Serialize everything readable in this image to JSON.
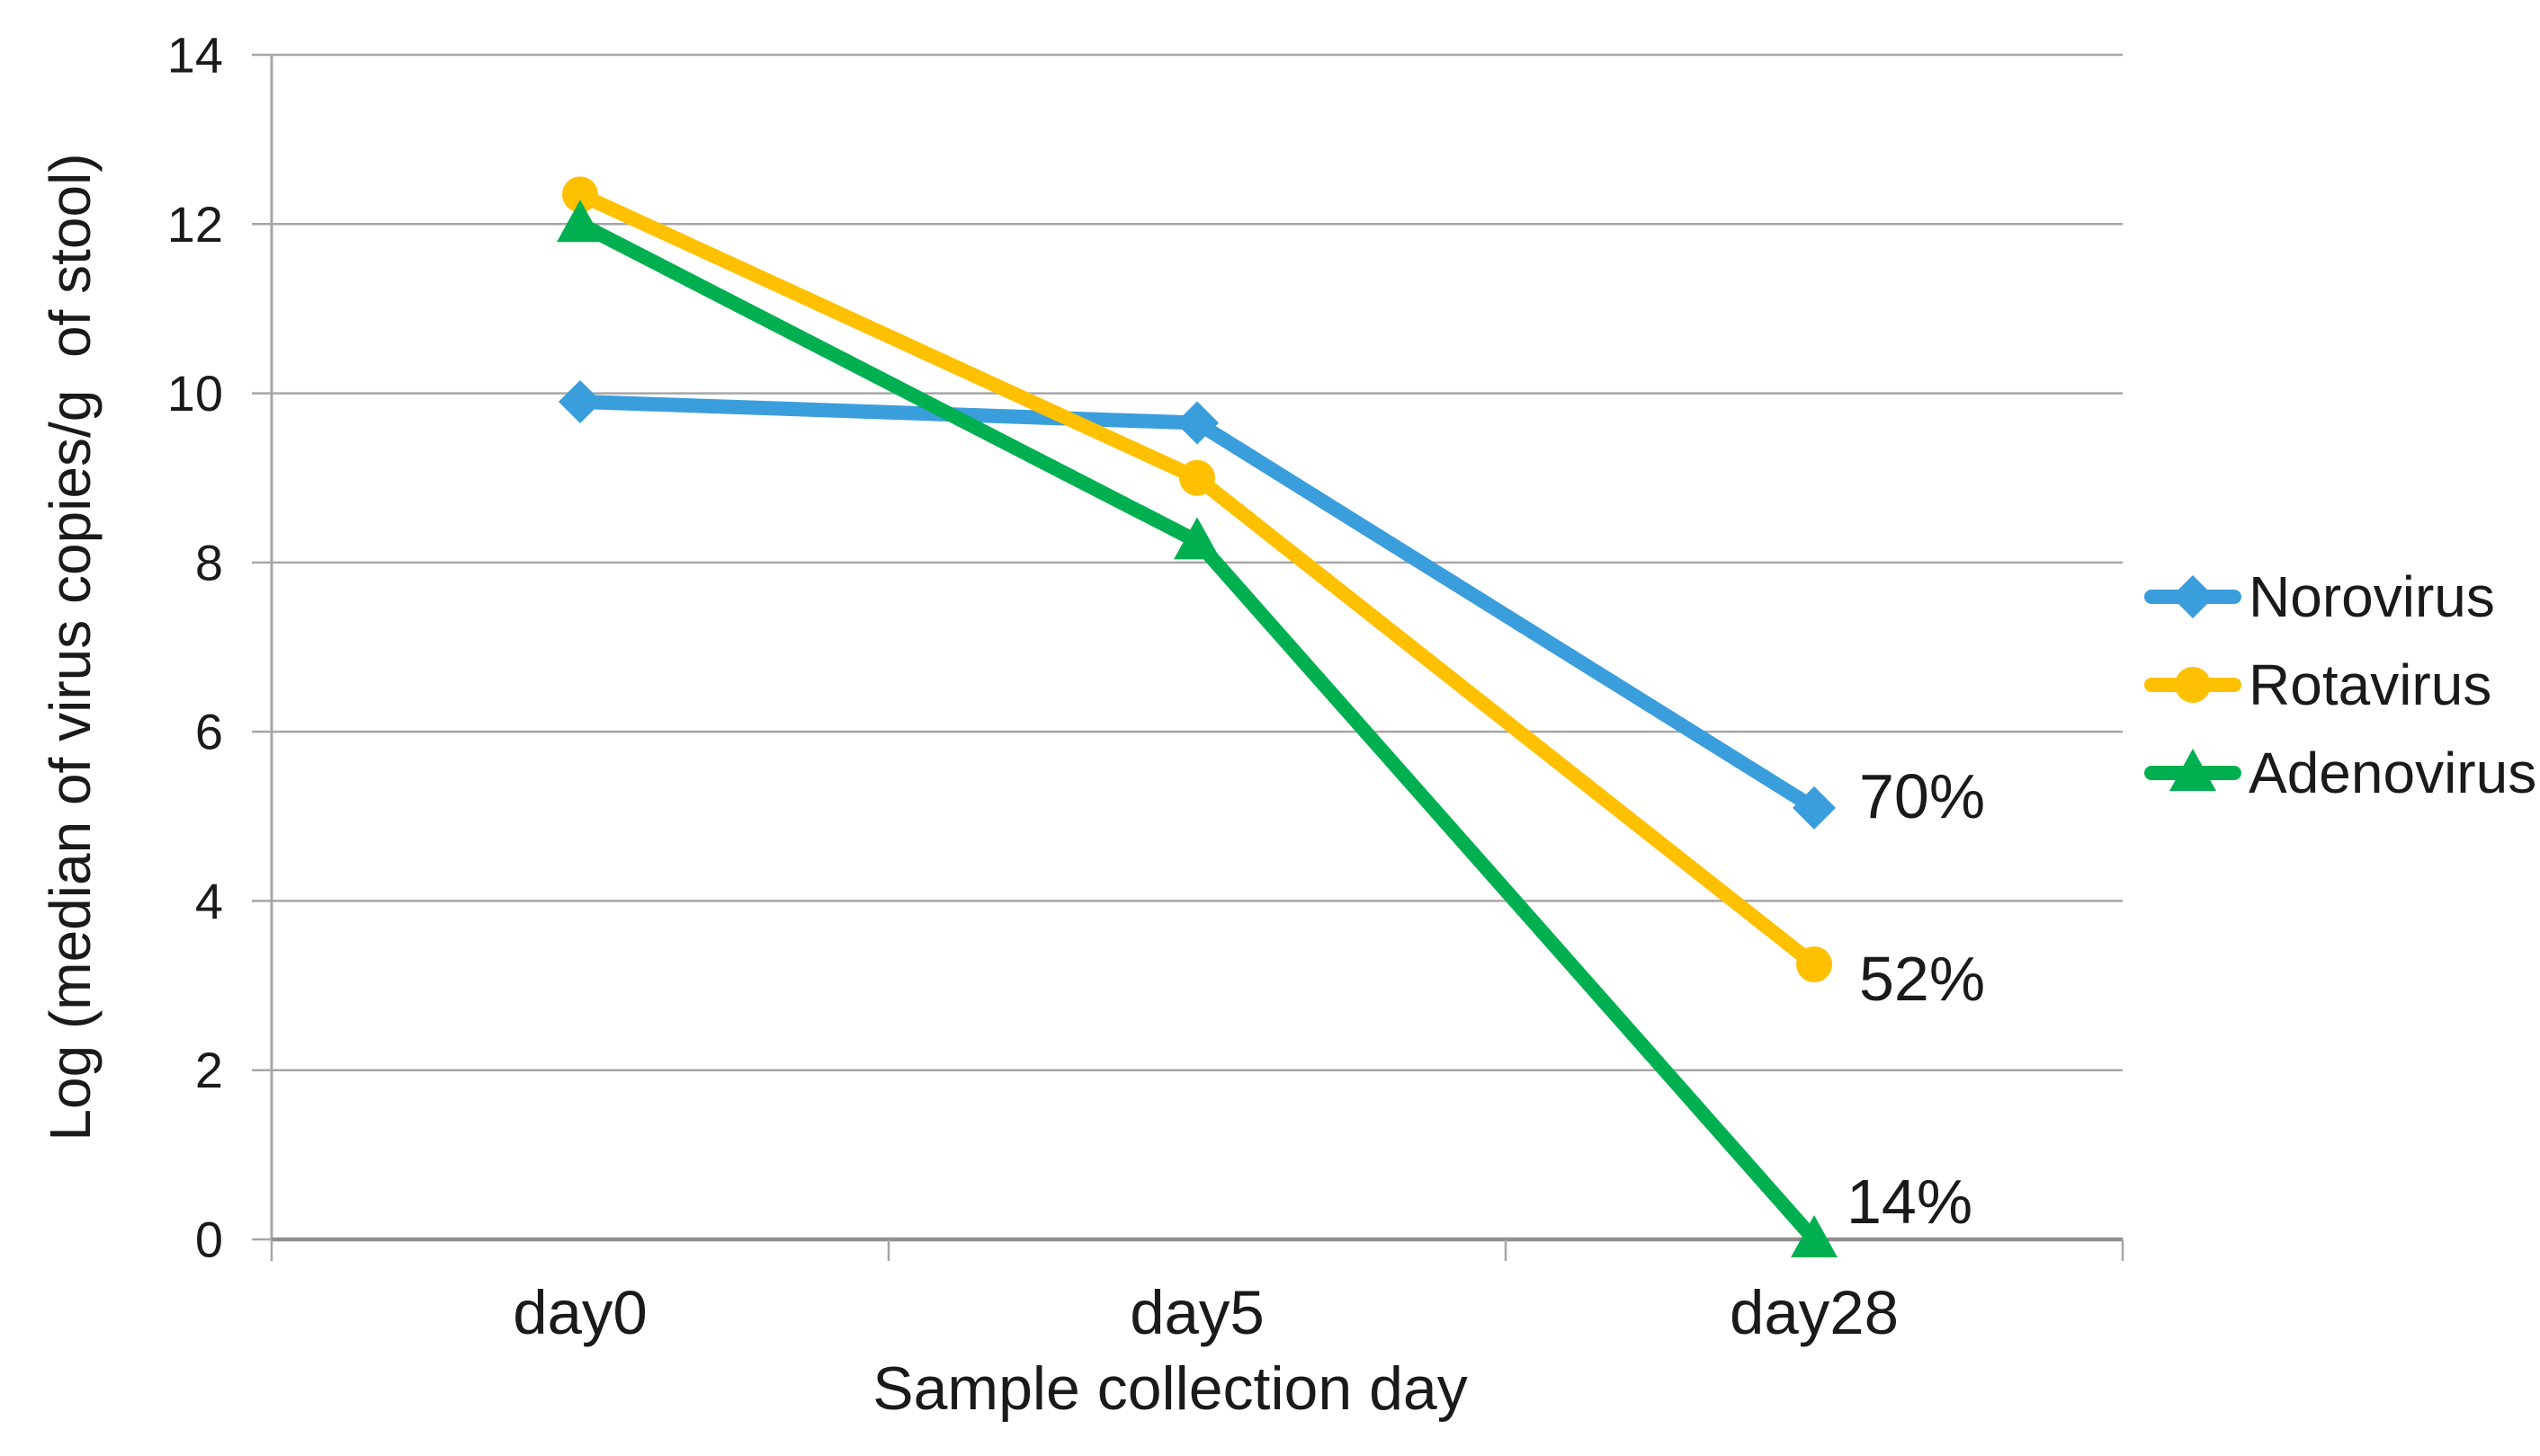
{
  "figure": {
    "background": "#ffffff",
    "text_color": "#1a1a1a",
    "gridline_color": "#a6a6a6",
    "axis_color": "#8e8e8e"
  },
  "chart_data": {
    "type": "line",
    "title": "",
    "xlabel": "Sample collection day",
    "ylabel": "Log (median of virus copies/g  of stool)",
    "categories": [
      "day0",
      "day5",
      "day28"
    ],
    "series": [
      {
        "name": "Norovirus",
        "color": "#3b9edc",
        "marker": "diamond",
        "values": [
          9.9,
          9.65,
          5.1
        ],
        "end_label": "70%"
      },
      {
        "name": "Rotavirus",
        "color": "#ffc000",
        "marker": "circle",
        "values": [
          12.35,
          9.0,
          3.25
        ],
        "end_label": "52%"
      },
      {
        "name": "Adenovirus",
        "color": "#00b050",
        "marker": "triangle",
        "values": [
          12.0,
          8.25,
          0
        ],
        "end_label": "14%"
      }
    ],
    "ylim": [
      0,
      14
    ],
    "yticks": [
      0,
      2,
      4,
      6,
      8,
      10,
      12,
      14
    ],
    "grid": "horizontal",
    "legend_position": "right"
  }
}
